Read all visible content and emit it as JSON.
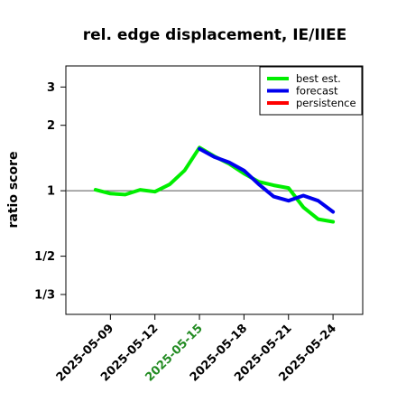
{
  "chart_data": {
    "type": "line",
    "title": "rel. edge displacement, IE/IIEE",
    "ylabel": "ratio score",
    "xlabel": "",
    "y_scale": "log",
    "ylim": [
      0.27,
      3.75
    ],
    "reference_line": 1,
    "y_ticks": [
      {
        "value": 3,
        "label": "3"
      },
      {
        "value": 2,
        "label": "2"
      },
      {
        "value": 1,
        "label": "1"
      },
      {
        "value": 0.5,
        "label": "1/2"
      },
      {
        "value": 0.3333,
        "label": "1/3"
      }
    ],
    "x_range": [
      "2025-05-06",
      "2025-05-26"
    ],
    "x_ticks": [
      {
        "date": "2025-05-09",
        "label": "2025-05-09",
        "color": "#000000"
      },
      {
        "date": "2025-05-12",
        "label": "2025-05-12",
        "color": "#000000"
      },
      {
        "date": "2025-05-15",
        "label": "2025-05-15",
        "color": "#228B22"
      },
      {
        "date": "2025-05-18",
        "label": "2025-05-18",
        "color": "#000000"
      },
      {
        "date": "2025-05-21",
        "label": "2025-05-21",
        "color": "#000000"
      },
      {
        "date": "2025-05-24",
        "label": "2025-05-24",
        "color": "#000000"
      }
    ],
    "legend": {
      "placement": "top-right"
    },
    "series": [
      {
        "name": "best est.",
        "color": "#00ee00",
        "points": [
          [
            "2025-05-08",
            1.01
          ],
          [
            "2025-05-09",
            0.97
          ],
          [
            "2025-05-10",
            0.96
          ],
          [
            "2025-05-11",
            1.01
          ],
          [
            "2025-05-12",
            0.99
          ],
          [
            "2025-05-13",
            1.07
          ],
          [
            "2025-05-14",
            1.24
          ],
          [
            "2025-05-15",
            1.58
          ],
          [
            "2025-05-16",
            1.44
          ],
          [
            "2025-05-17",
            1.33
          ],
          [
            "2025-05-18",
            1.2
          ],
          [
            "2025-05-19",
            1.1
          ],
          [
            "2025-05-20",
            1.06
          ],
          [
            "2025-05-21",
            1.03
          ],
          [
            "2025-05-22",
            0.84
          ],
          [
            "2025-05-23",
            0.74
          ],
          [
            "2025-05-24",
            0.72
          ]
        ]
      },
      {
        "name": "forecast",
        "color": "#0000ee",
        "points": [
          [
            "2025-05-15",
            1.56
          ],
          [
            "2025-05-16",
            1.43
          ],
          [
            "2025-05-17",
            1.35
          ],
          [
            "2025-05-18",
            1.24
          ],
          [
            "2025-05-19",
            1.07
          ],
          [
            "2025-05-20",
            0.94
          ],
          [
            "2025-05-21",
            0.9
          ],
          [
            "2025-05-22",
            0.95
          ],
          [
            "2025-05-23",
            0.9
          ],
          [
            "2025-05-24",
            0.8
          ]
        ]
      },
      {
        "name": "persistence",
        "color": "#ff0000",
        "points": []
      }
    ]
  }
}
